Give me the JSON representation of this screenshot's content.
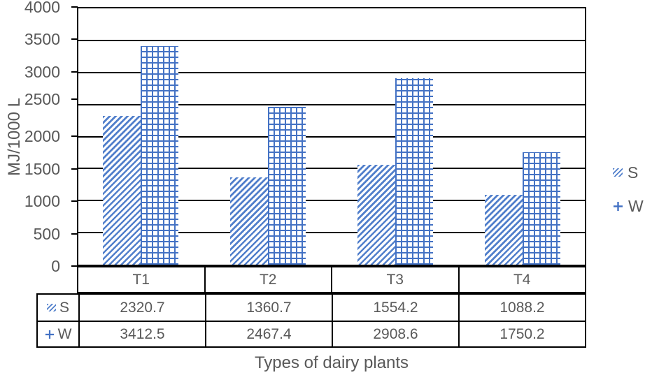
{
  "chart_data": {
    "type": "bar",
    "title": "",
    "categories": [
      "T1",
      "T2",
      "T3",
      "T4"
    ],
    "series": [
      {
        "name": "S",
        "pattern": "diagonal-hatch",
        "values": [
          2320.7,
          1360.7,
          1554.2,
          1088.2
        ]
      },
      {
        "name": "W",
        "pattern": "cross-hatch",
        "values": [
          3412.5,
          2467.4,
          2908.6,
          1750.2
        ]
      }
    ],
    "xlabel": "Types of dairy plants",
    "ylabel": "MJ/1000 L",
    "ylim": [
      0,
      4000
    ],
    "ytick_step": 500,
    "yticks": [
      "0",
      "500",
      "1000",
      "1500",
      "2000",
      "2500",
      "3000",
      "3500",
      "4000"
    ],
    "grid": true,
    "legend_position": "right",
    "shows_data_table": true
  },
  "colors": {
    "bar_blue": "#4472C4",
    "axis_text_gray": "#595959",
    "line_black": "#000000",
    "background": "#FFFFFF"
  },
  "icons": {
    "s_marker": "diagonal-hatch-swatch",
    "w_marker": "plus-marker"
  }
}
